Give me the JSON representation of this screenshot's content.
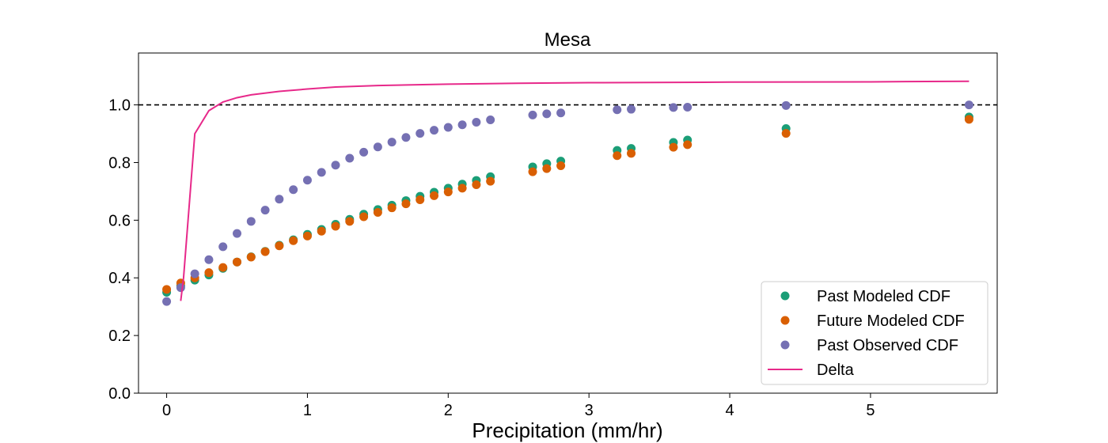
{
  "chart_data": {
    "type": "scatter",
    "title": "Mesa",
    "xlabel": "Precipitation (mm/hr)",
    "ylabel": "",
    "xlim": [
      -0.2,
      5.9
    ],
    "ylim": [
      0,
      1.18
    ],
    "xticks": [
      0,
      1,
      2,
      3,
      4,
      5
    ],
    "yticks": [
      0.0,
      0.2,
      0.4,
      0.6,
      0.8,
      1.0
    ],
    "xtick_labels": [
      "0",
      "1",
      "2",
      "3",
      "4",
      "5"
    ],
    "ytick_labels": [
      "0.0",
      "0.2",
      "0.4",
      "0.6",
      "0.8",
      "1.0"
    ],
    "reference_line": {
      "y": 1.0,
      "style": "dashed",
      "color": "#000000"
    },
    "legend_position": "lower-right",
    "series": [
      {
        "name": "Past Modeled CDF",
        "kind": "scatter",
        "color": "#1b9e77",
        "x": [
          0,
          0.1,
          0.2,
          0.3,
          0.4,
          0.5,
          0.6,
          0.7,
          0.8,
          0.9,
          1.0,
          1.1,
          1.2,
          1.3,
          1.4,
          1.5,
          1.6,
          1.7,
          1.8,
          1.9,
          2.0,
          2.1,
          2.2,
          2.3,
          2.6,
          2.7,
          2.8,
          3.2,
          3.3,
          3.6,
          3.7,
          4.4,
          5.7
        ],
        "y": [
          0.35,
          0.372,
          0.392,
          0.41,
          0.433,
          0.455,
          0.473,
          0.492,
          0.513,
          0.532,
          0.551,
          0.568,
          0.586,
          0.603,
          0.621,
          0.637,
          0.652,
          0.668,
          0.683,
          0.697,
          0.711,
          0.725,
          0.738,
          0.751,
          0.785,
          0.796,
          0.805,
          0.842,
          0.849,
          0.87,
          0.878,
          0.918,
          0.958
        ]
      },
      {
        "name": "Future Modeled CDF",
        "kind": "scatter",
        "color": "#d95f02",
        "x": [
          0,
          0.1,
          0.2,
          0.3,
          0.4,
          0.5,
          0.6,
          0.7,
          0.8,
          0.9,
          1.0,
          1.1,
          1.2,
          1.3,
          1.4,
          1.5,
          1.6,
          1.7,
          1.8,
          1.9,
          2.0,
          2.1,
          2.2,
          2.3,
          2.6,
          2.7,
          2.8,
          3.2,
          3.3,
          3.6,
          3.7,
          4.4,
          5.7
        ],
        "y": [
          0.36,
          0.382,
          0.4,
          0.418,
          0.436,
          0.455,
          0.472,
          0.491,
          0.511,
          0.529,
          0.545,
          0.562,
          0.579,
          0.596,
          0.612,
          0.627,
          0.643,
          0.657,
          0.671,
          0.685,
          0.698,
          0.711,
          0.723,
          0.735,
          0.768,
          0.779,
          0.789,
          0.824,
          0.832,
          0.853,
          0.862,
          0.901,
          0.95
        ]
      },
      {
        "name": "Past Observed CDF",
        "kind": "scatter",
        "color": "#7570b3",
        "x": [
          0,
          0.1,
          0.2,
          0.3,
          0.4,
          0.5,
          0.6,
          0.7,
          0.8,
          0.9,
          1.0,
          1.1,
          1.2,
          1.3,
          1.4,
          1.5,
          1.6,
          1.7,
          1.8,
          1.9,
          2.0,
          2.1,
          2.2,
          2.3,
          2.6,
          2.7,
          2.8,
          3.2,
          3.3,
          3.6,
          3.7,
          4.4,
          5.7
        ],
        "y": [
          0.318,
          0.366,
          0.414,
          0.463,
          0.508,
          0.554,
          0.596,
          0.635,
          0.673,
          0.706,
          0.739,
          0.766,
          0.791,
          0.815,
          0.836,
          0.854,
          0.871,
          0.887,
          0.901,
          0.912,
          0.922,
          0.931,
          0.94,
          0.948,
          0.965,
          0.969,
          0.972,
          0.983,
          0.985,
          0.991,
          0.992,
          0.998,
          1.0
        ]
      },
      {
        "name": "Delta",
        "kind": "line",
        "color": "#e7298a",
        "x": [
          0.1,
          0.12,
          0.2,
          0.3,
          0.4,
          0.5,
          0.6,
          0.8,
          1.0,
          1.2,
          1.5,
          2.0,
          2.5,
          3.0,
          4.0,
          5.0,
          5.7
        ],
        "y": [
          0.32,
          0.4,
          0.9,
          0.98,
          1.01,
          1.025,
          1.035,
          1.047,
          1.055,
          1.062,
          1.067,
          1.072,
          1.075,
          1.077,
          1.079,
          1.08,
          1.082
        ]
      }
    ]
  }
}
